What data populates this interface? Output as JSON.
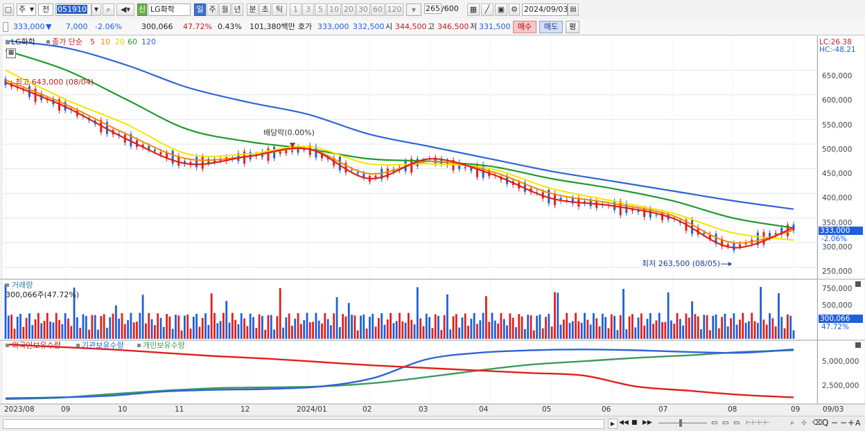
{
  "toolbar": {
    "market_type": "주",
    "prev_label": "전",
    "code": "051910",
    "stock_name": "LG화학",
    "credit_badge": "신",
    "periods": [
      "일",
      "주",
      "월",
      "년",
      "분",
      "초",
      "틱"
    ],
    "active_period": "일",
    "intervals": [
      "1",
      "3",
      "5",
      "10",
      "20",
      "30",
      "60",
      "120"
    ],
    "count_value": "265",
    "count_total": "/600",
    "date": "2024/09/03"
  },
  "infobar": {
    "price": "333,000",
    "change_arrow": "▼",
    "change": "7,000",
    "change_pct": "-2.06%",
    "volume": "300,066",
    "volume_ratio": "47.72%",
    "turnover": "0.43%",
    "amount": "101,380백만",
    "quote_label": "호가",
    "ask": "333,000",
    "bid": "332,500",
    "open_label": "시",
    "open": "344,500",
    "high_label": "고",
    "high": "346,500",
    "low_label": "저",
    "low": "331,500",
    "buy_label": "매수",
    "sell_label": "매도",
    "eval_label": "평"
  },
  "legend": {
    "name": "LG화학",
    "desc": "종가 단순",
    "ma": [
      "5",
      "10",
      "20",
      "60",
      "120"
    ]
  },
  "annotations": {
    "high_text": "최고 643,000 (08/04)",
    "low_text": "최저 263,500 (08/05)",
    "dividend_text": "배당락(0.00%)"
  },
  "right_axis": {
    "lc": "LC:26.38",
    "hc": "HC:-48.21",
    "price_tag": "333,000",
    "price_pct_tag": "-2.06%",
    "price_ticks": [
      "650,000",
      "600,000",
      "550,000",
      "500,000",
      "450,000",
      "400,000",
      "350,000",
      "300,000",
      "250,000"
    ],
    "volume_ticks": [
      "750,000",
      "500,000",
      "250,000"
    ],
    "volume_tag": "300,066",
    "volume_pct_tag": "47.72%",
    "holdings_ticks": [
      "5,000,000",
      "2,500,000"
    ]
  },
  "volume_panel": {
    "title": "거래량",
    "current": "300,066주(47.72%)"
  },
  "holdings_panel": {
    "series": [
      "외국인보유수량",
      "기관보유수량",
      "개인보유수량"
    ]
  },
  "x_axis": {
    "labels": [
      "2023/08",
      "09",
      "10",
      "11",
      "12",
      "2024/01",
      "02",
      "03",
      "04",
      "05",
      "06",
      "07",
      "08",
      "09"
    ],
    "last_date": "09/03"
  },
  "colors": {
    "up": "#e0201b",
    "down": "#1f5fd8",
    "ma5": "#e0201b",
    "ma10": "#f08a00",
    "ma20": "#f5e400",
    "ma60": "#1e9a2e",
    "ma120": "#2f63d8",
    "foreign": "#e0201b",
    "institution": "#2f63d8",
    "individual": "#3d9a5f"
  },
  "chart_data": {
    "type": "line",
    "x": [
      "2023/08",
      "2023/09",
      "2023/10",
      "2023/11",
      "2023/12",
      "2024/01",
      "2024/02",
      "2024/03",
      "2024/04",
      "2024/05",
      "2024/06",
      "2024/07",
      "2024/08",
      "2024/09"
    ],
    "series": [
      {
        "name": "5",
        "values": [
          625000,
          575000,
          510000,
          460000,
          475000,
          490000,
          430000,
          470000,
          440000,
          390000,
          375000,
          350000,
          290000,
          330000
        ]
      },
      {
        "name": "10",
        "values": [
          630000,
          580000,
          520000,
          470000,
          475000,
          490000,
          440000,
          465000,
          445000,
          400000,
          380000,
          355000,
          300000,
          325000
        ]
      },
      {
        "name": "20",
        "values": [
          650000,
          590000,
          540000,
          480000,
          480000,
          495000,
          460000,
          460000,
          450000,
          410000,
          385000,
          360000,
          320000,
          305000
        ]
      },
      {
        "name": "60",
        "values": [
          690000,
          650000,
          590000,
          530000,
          505000,
          490000,
          470000,
          465000,
          455000,
          430000,
          410000,
          385000,
          350000,
          330000
        ]
      },
      {
        "name": "120",
        "values": [
          710000,
          695000,
          660000,
          615000,
          585000,
          560000,
          520000,
          495000,
          470000,
          445000,
          425000,
          405000,
          385000,
          368000
        ]
      }
    ],
    "ylim": [
      230000,
      715000
    ]
  }
}
